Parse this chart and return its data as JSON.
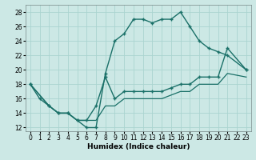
{
  "xlabel": "Humidex (Indice chaleur)",
  "bg_color": "#cce8e5",
  "grid_color": "#aad4d0",
  "line_color": "#1a7068",
  "xlim": [
    -0.5,
    23.5
  ],
  "ylim": [
    11.5,
    29.0
  ],
  "xticks": [
    0,
    1,
    2,
    3,
    4,
    5,
    6,
    7,
    8,
    9,
    10,
    11,
    12,
    13,
    14,
    15,
    16,
    17,
    18,
    19,
    20,
    21,
    22,
    23
  ],
  "yticks": [
    12,
    14,
    16,
    18,
    20,
    22,
    24,
    26,
    28
  ],
  "curve1_x": [
    0,
    1,
    2,
    3,
    4,
    5,
    6,
    7,
    8,
    9,
    10,
    11,
    12,
    13,
    14,
    15,
    16,
    17,
    18,
    19,
    20,
    21,
    23
  ],
  "curve1_y": [
    18,
    16,
    15,
    14,
    14,
    13,
    12,
    12,
    19.5,
    24,
    25,
    27,
    27,
    26.5,
    27,
    27,
    28,
    26,
    24,
    23,
    22.5,
    22,
    20
  ],
  "curve2_x": [
    0,
    2,
    3,
    4,
    5,
    6,
    7,
    8,
    9,
    10,
    11,
    12,
    13,
    14,
    15,
    16,
    17,
    18,
    19,
    20,
    21,
    23
  ],
  "curve2_y": [
    18,
    15,
    14,
    14,
    13,
    13,
    15,
    19,
    16,
    17,
    17,
    17,
    17,
    17,
    17.5,
    18,
    18,
    19,
    19,
    19,
    23,
    20
  ],
  "curve3_x": [
    0,
    2,
    3,
    4,
    5,
    6,
    7,
    8,
    9,
    10,
    11,
    12,
    13,
    14,
    15,
    16,
    17,
    18,
    19,
    20,
    21,
    23
  ],
  "curve3_y": [
    18,
    15,
    14,
    14,
    13,
    13,
    13,
    15,
    15,
    16,
    16,
    16,
    16,
    16,
    16.5,
    17,
    17,
    18,
    18,
    18,
    19.5,
    19
  ]
}
